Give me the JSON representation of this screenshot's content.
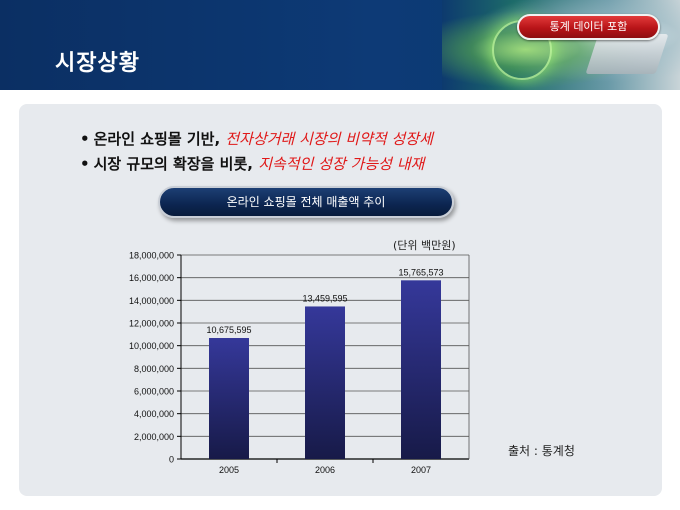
{
  "header": {
    "title": "시장상황",
    "tag_button": "통계 데이터 포함"
  },
  "bullets": [
    {
      "plain": "온라인 쇼핑몰 기반, ",
      "emphasis": "전자상거래 시장의 비약적 성장세"
    },
    {
      "plain": "시장 규모의 확장을 비롯, ",
      "emphasis": "지속적인 성장 가능성 내재"
    }
  ],
  "chart_title": "온라인 쇼핑몰 전체 매출액 추이",
  "unit_label": "(단위 백만원)",
  "source_label": "출처 : 통계청",
  "colors": {
    "header_bg": "#0b2f63",
    "bar_top": "#35389a",
    "bar_bottom": "#171a48",
    "emphasis": "#e01818",
    "tag_red": "#b81418"
  },
  "chart_data": {
    "type": "bar",
    "categories": [
      "2005",
      "2006",
      "2007"
    ],
    "values": [
      10675595,
      13459595,
      15765573
    ],
    "data_labels": [
      "10,675,595",
      "13,459,595",
      "15,765,573"
    ],
    "y_ticks": [
      "0",
      "2,000,000",
      "4,000,000",
      "6,000,000",
      "8,000,000",
      "10,000,000",
      "12,000,000",
      "14,000,000",
      "16,000,000",
      "18,000,000"
    ],
    "ylim": [
      0,
      18000000
    ],
    "grid": true,
    "title": "",
    "xlabel": "",
    "ylabel": ""
  }
}
